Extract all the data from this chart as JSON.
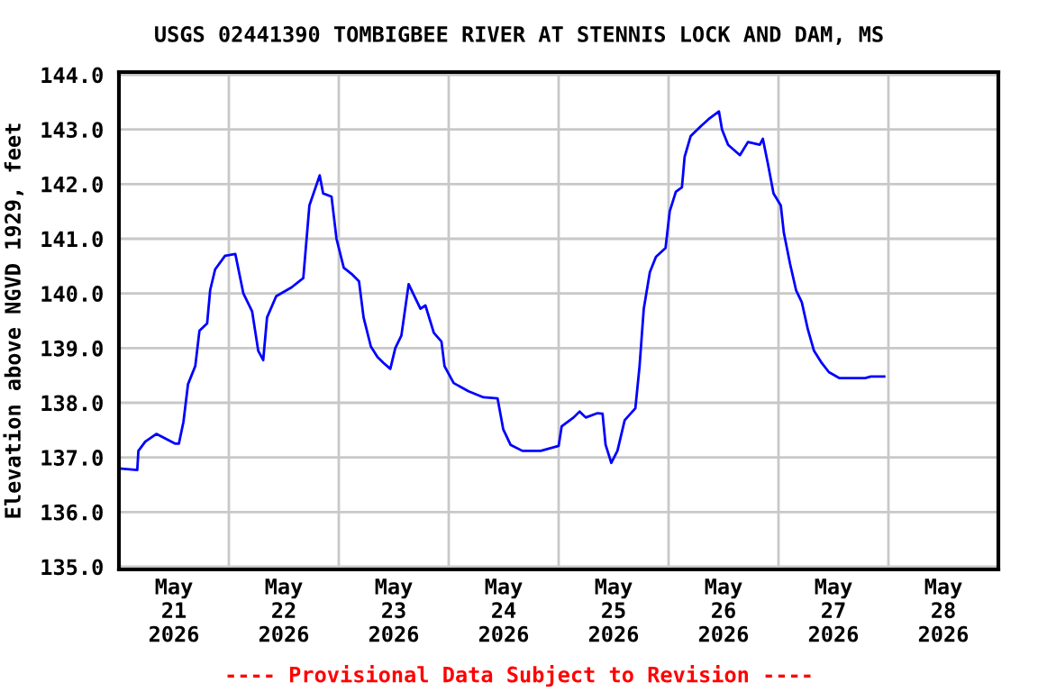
{
  "chart_data": {
    "type": "line",
    "title": "USGS 02441390 TOMBIGBEE RIVER AT STENNIS LOCK AND DAM, MS",
    "ylabel": "Elevation above NGVD 1929, feet",
    "annotations": [
      "---- Provisional Data Subject to Revision ----"
    ],
    "x": [
      "2026-05-21T00:00",
      "2026-05-21T04:00",
      "2026-05-21T04:15",
      "2026-05-21T05:45",
      "2026-05-21T08:10",
      "2026-05-21T12:20",
      "2026-05-21T13:05",
      "2026-05-21T14:05",
      "2026-05-21T15:05",
      "2026-05-21T16:40",
      "2026-05-21T17:35",
      "2026-05-21T19:15",
      "2026-05-21T19:55",
      "2026-05-21T21:00",
      "2026-05-21T23:10",
      "2026-05-22T01:25",
      "2026-05-22T03:10",
      "2026-05-22T05:05",
      "2026-05-22T06:25",
      "2026-05-22T07:30",
      "2026-05-22T08:20",
      "2026-05-22T10:20",
      "2026-05-22T13:40",
      "2026-05-22T16:15",
      "2026-05-22T17:35",
      "2026-05-22T19:50",
      "2026-05-22T20:35",
      "2026-05-22T22:25",
      "2026-05-22T23:30",
      "2026-05-23T01:05",
      "2026-05-23T02:45",
      "2026-05-23T04:25",
      "2026-05-23T05:25",
      "2026-05-23T07:00",
      "2026-05-23T08:25",
      "2026-05-23T09:45",
      "2026-05-23T11:15",
      "2026-05-23T12:20",
      "2026-05-23T13:40",
      "2026-05-23T15:15",
      "2026-05-23T16:30",
      "2026-05-23T17:50",
      "2026-05-23T18:55",
      "2026-05-23T20:45",
      "2026-05-23T22:25",
      "2026-05-23T23:05",
      "2026-05-24T01:05",
      "2026-05-24T04:20",
      "2026-05-24T07:35",
      "2026-05-24T10:40",
      "2026-05-24T11:55",
      "2026-05-24T13:30",
      "2026-05-24T16:05",
      "2026-05-24T20:05",
      "2026-05-25T00:00",
      "2026-05-25T00:40",
      "2026-05-25T03:15",
      "2026-05-25T04:35",
      "2026-05-25T05:55",
      "2026-05-25T08:30",
      "2026-05-25T09:35",
      "2026-05-25T10:15",
      "2026-05-25T11:30",
      "2026-05-25T12:50",
      "2026-05-25T14:25",
      "2026-05-25T16:45",
      "2026-05-25T17:40",
      "2026-05-25T18:35",
      "2026-05-25T19:55",
      "2026-05-25T21:15",
      "2026-05-25T23:20",
      "2026-05-26T00:15",
      "2026-05-26T01:35",
      "2026-05-26T02:55",
      "2026-05-26T03:30",
      "2026-05-26T04:50",
      "2026-05-26T07:10",
      "2026-05-26T08:45",
      "2026-05-26T11:00",
      "2026-05-26T11:40",
      "2026-05-26T13:00",
      "2026-05-26T15:35",
      "2026-05-26T17:20",
      "2026-05-26T19:55",
      "2026-05-26T20:35",
      "2026-05-26T21:40",
      "2026-05-26T22:55",
      "2026-05-27T00:30",
      "2026-05-27T01:10",
      "2026-05-27T02:30",
      "2026-05-27T03:50",
      "2026-05-27T05:05",
      "2026-05-27T06:25",
      "2026-05-27T07:45",
      "2026-05-27T09:25",
      "2026-05-27T11:00",
      "2026-05-27T13:20",
      "2026-05-27T14:55",
      "2026-05-27T18:55",
      "2026-05-27T20:10",
      "2026-05-27T23:05"
    ],
    "series": [
      {
        "color": "#0000ff",
        "values": [
          136.8,
          136.77,
          137.12,
          137.29,
          137.43,
          137.25,
          137.25,
          137.65,
          138.34,
          138.67,
          139.32,
          139.45,
          140.06,
          140.44,
          140.69,
          140.72,
          140.0,
          139.67,
          138.95,
          138.78,
          139.56,
          139.95,
          140.11,
          140.28,
          141.61,
          142.16,
          141.83,
          141.77,
          141.0,
          140.47,
          140.36,
          140.22,
          139.56,
          139.03,
          138.84,
          138.73,
          138.62,
          139.0,
          139.23,
          140.17,
          139.95,
          139.72,
          139.78,
          139.28,
          139.12,
          138.67,
          138.36,
          138.21,
          138.1,
          138.08,
          137.51,
          137.23,
          137.12,
          137.12,
          137.21,
          137.57,
          137.73,
          137.84,
          137.73,
          137.81,
          137.8,
          137.23,
          136.9,
          137.12,
          137.68,
          137.9,
          138.67,
          139.72,
          140.39,
          140.67,
          140.83,
          141.5,
          141.86,
          141.94,
          142.5,
          142.88,
          143.07,
          143.19,
          143.33,
          143.0,
          142.72,
          142.53,
          142.77,
          142.72,
          142.83,
          142.38,
          141.83,
          141.61,
          141.11,
          140.55,
          140.06,
          139.84,
          139.34,
          138.95,
          138.73,
          138.56,
          138.45,
          138.45,
          138.45,
          138.48,
          138.48
        ]
      }
    ],
    "xlim": [
      "2026-05-21",
      "2026-05-29"
    ],
    "xticks": [
      {
        "value": "2026-05-21T12:00",
        "label": "May\n21\n2026"
      },
      {
        "value": "2026-05-22T12:00",
        "label": "May\n22\n2026"
      },
      {
        "value": "2026-05-23T12:00",
        "label": "May\n23\n2026"
      },
      {
        "value": "2026-05-24T12:00",
        "label": "May\n24\n2026"
      },
      {
        "value": "2026-05-25T12:00",
        "label": "May\n25\n2026"
      },
      {
        "value": "2026-05-26T12:00",
        "label": "May\n26\n2026"
      },
      {
        "value": "2026-05-27T12:00",
        "label": "May\n27\n2026"
      },
      {
        "value": "2026-05-28T12:00",
        "label": "May\n28\n2026"
      },
      {
        "value": "2026-05-22",
        "label": null
      },
      {
        "value": "2026-05-23",
        "label": null
      },
      {
        "value": "2026-05-24",
        "label": null
      },
      {
        "value": "2026-05-25",
        "label": null
      },
      {
        "value": "2026-05-26",
        "label": null
      },
      {
        "value": "2026-05-27",
        "label": null
      },
      {
        "value": "2026-05-28",
        "label": null
      }
    ],
    "ylim": [
      134.95,
      144.05
    ],
    "yticks": [
      {
        "value": 135,
        "label": "135.0"
      },
      {
        "value": 136,
        "label": "136.0"
      },
      {
        "value": 137,
        "label": "137.0"
      },
      {
        "value": 138,
        "label": "138.0"
      },
      {
        "value": 139,
        "label": "139.0"
      },
      {
        "value": 140,
        "label": "140.0"
      },
      {
        "value": 141,
        "label": "141.0"
      },
      {
        "value": 142,
        "label": "142.0"
      },
      {
        "value": 143,
        "label": "143.0"
      },
      {
        "value": 144,
        "label": "144.0"
      }
    ],
    "grid": true,
    "legend": false,
    "marker": "none",
    "line_style": "solid"
  }
}
